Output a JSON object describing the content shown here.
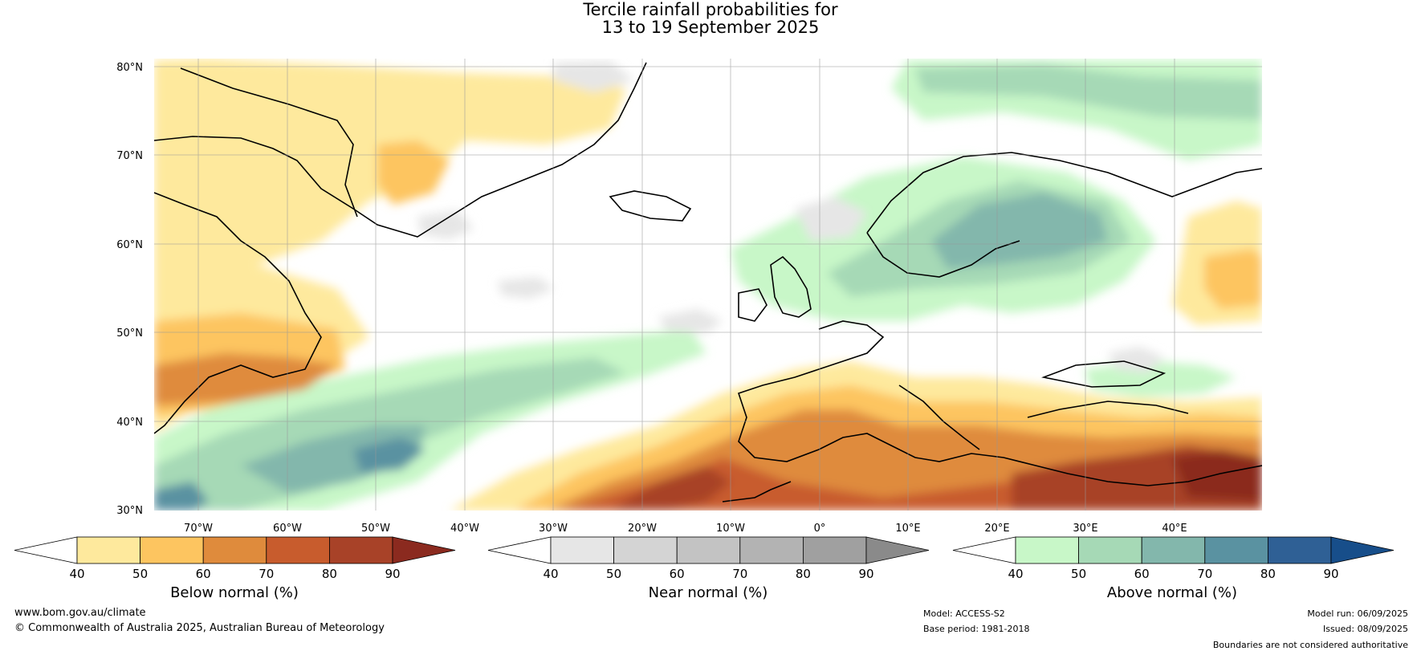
{
  "title_line1": "Tercile rainfall probabilities for",
  "title_line2": "13 to 19 September 2025",
  "lat_labels": [
    "80°N",
    "70°N",
    "60°N",
    "50°N",
    "40°N",
    "30°N"
  ],
  "lon_labels": [
    "70°W",
    "60°W",
    "50°W",
    "40°W",
    "30°W",
    "20°W",
    "10°W",
    "0°",
    "10°E",
    "20°E",
    "30°E",
    "40°E"
  ],
  "colorbars": [
    {
      "label": "Below normal (%)",
      "ticks": [
        "40",
        "50",
        "60",
        "70",
        "80",
        "90"
      ],
      "colors": [
        "#ffffff",
        "#fee99d",
        "#fdc560",
        "#df8b3c",
        "#c85c2d",
        "#a84228",
        "#8b2a1f"
      ]
    },
    {
      "label": "Near normal (%)",
      "ticks": [
        "40",
        "50",
        "60",
        "70",
        "80",
        "90"
      ],
      "colors": [
        "#ffffff",
        "#e6e6e6",
        "#d4d4d4",
        "#c3c3c3",
        "#b3b3b3",
        "#a0a0a0",
        "#8a8a8a"
      ]
    },
    {
      "label": "Above normal (%)",
      "ticks": [
        "40",
        "50",
        "60",
        "70",
        "80",
        "90"
      ],
      "colors": [
        "#ffffff",
        "#c8f7c8",
        "#a6d9b6",
        "#83b7ac",
        "#5a92a1",
        "#2f6095",
        "#174e8a"
      ]
    }
  ],
  "footer": {
    "website": "www.bom.gov.au/climate",
    "copyright": "© Commonwealth of Australia 2025, Australian Bureau of Meteorology",
    "model": "Model: ACCESS-S2",
    "base_period": "Base period: 1981-2018",
    "model_run": "Model run: 06/09/2025",
    "issued": "Issued: 08/09/2025",
    "disclaimer": "Boundaries are not considered authoritative"
  }
}
